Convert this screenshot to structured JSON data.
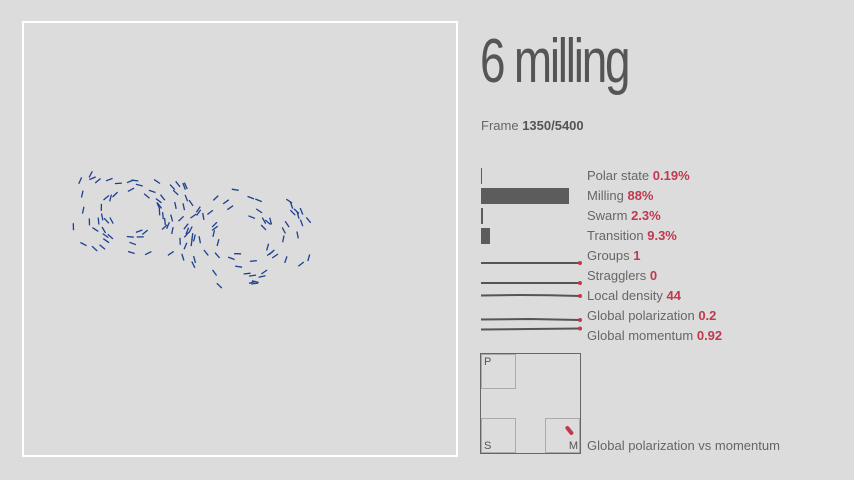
{
  "title": "6 milling",
  "frame": {
    "label": "Frame",
    "value": "1350/5400"
  },
  "metrics": [
    {
      "label": "Polar state",
      "value": "0.19%",
      "fraction": 0.0019,
      "kind": "bar"
    },
    {
      "label": "Milling",
      "value": "88%",
      "fraction": 0.88,
      "kind": "bar"
    },
    {
      "label": "Swarm",
      "value": "2.3%",
      "fraction": 0.023,
      "kind": "bar"
    },
    {
      "label": "Transition",
      "value": "9.3%",
      "fraction": 0.093,
      "kind": "bar"
    },
    {
      "label": "Groups",
      "value": "1",
      "kind": "spark"
    },
    {
      "label": "Stragglers",
      "value": "0",
      "kind": "spark"
    },
    {
      "label": "Local density",
      "value": "44",
      "kind": "spark"
    },
    {
      "label": "Global polarization",
      "value": "0.2",
      "kind": "spark"
    },
    {
      "label": "Global momentum",
      "value": "0.92",
      "kind": "spark"
    }
  ],
  "phase_plot": {
    "corner_p": "P",
    "corner_s": "S",
    "corner_m": "M",
    "caption": "Global polarization vs momentum",
    "point": {
      "polarization": 0.2,
      "momentum": 0.92
    }
  },
  "colors": {
    "accent": "#c0394e",
    "agent": "#1f3f8f",
    "bar": "#5c5c5c",
    "background": "#dcdcdc"
  }
}
